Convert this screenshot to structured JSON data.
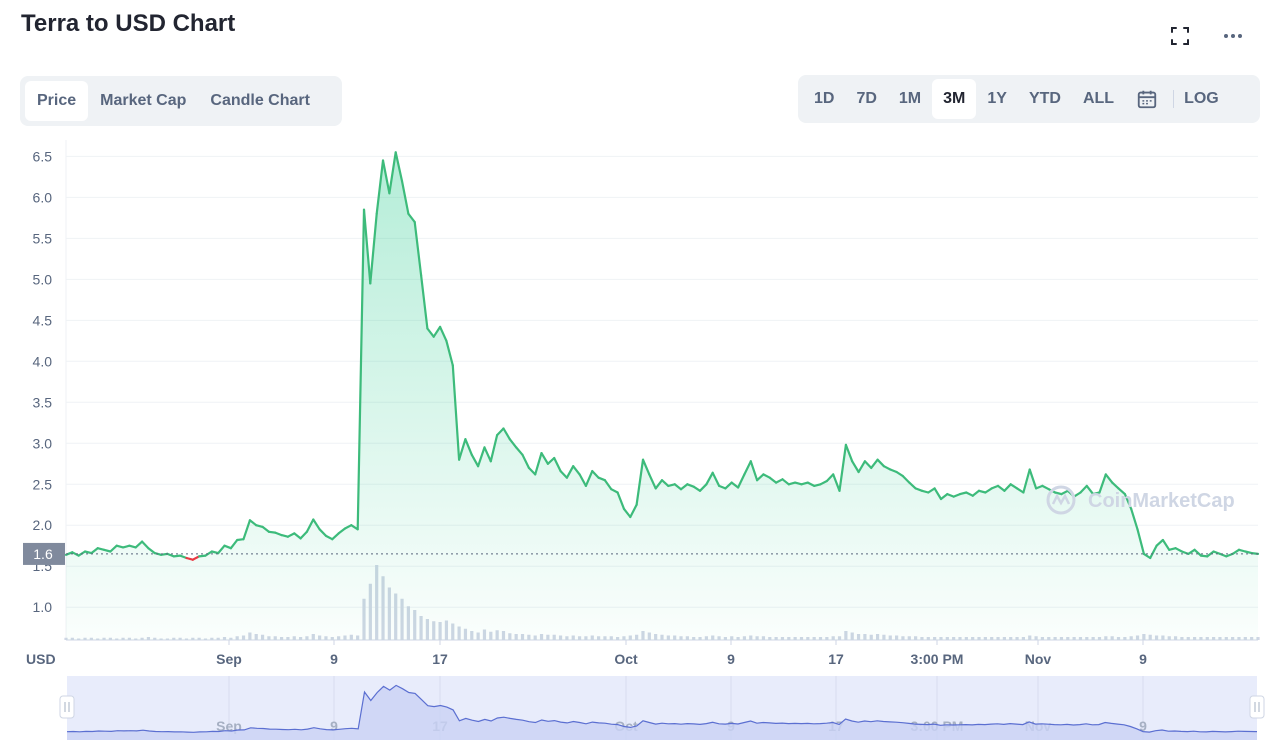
{
  "header": {
    "title": "Terra to USD Chart"
  },
  "tabs": [
    "Price",
    "Market Cap",
    "Candle Chart"
  ],
  "active_tab": "Price",
  "ranges": [
    "1D",
    "7D",
    "1M",
    "3M",
    "1Y",
    "YTD",
    "ALL"
  ],
  "active_range": "3M",
  "log_label": "LOG",
  "watermark": "CoinMarketCap",
  "colors": {
    "up": "#16c784",
    "line": "#3dbb7b",
    "down": "#ea3943",
    "grid": "#eff2f5",
    "volume": "#cfd6e4",
    "navigator_fill": "#e8ecfb",
    "navigator_line": "#5b6fd1"
  },
  "chart_data": {
    "type": "area",
    "title": "Terra to USD Chart",
    "ylabel": "USD",
    "ylim": [
      0.6,
      6.7
    ],
    "yticks": [
      "1.0",
      "1.5",
      "2.0",
      "2.5",
      "3.0",
      "3.5",
      "4.0",
      "4.5",
      "5.0",
      "5.5",
      "6.0",
      "6.5"
    ],
    "current_price_label": "1.6",
    "current_price": 1.65,
    "x_tick_labels": [
      "Sep",
      "9",
      "17",
      "Oct",
      "9",
      "17",
      "3:00 PM",
      "Nov",
      "9"
    ],
    "grid": true,
    "series": [
      {
        "values": [
          1.64,
          1.67,
          1.63,
          1.68,
          1.66,
          1.72,
          1.7,
          1.68,
          1.75,
          1.73,
          1.75,
          1.73,
          1.8,
          1.72,
          1.66,
          1.64,
          1.65,
          1.62,
          1.63,
          1.6,
          1.58,
          1.62,
          1.63,
          1.68,
          1.66,
          1.75,
          1.72,
          1.82,
          1.83,
          2.06,
          2.0,
          1.98,
          1.92,
          1.91,
          1.88,
          1.86,
          1.9,
          1.84,
          1.92,
          2.07,
          1.95,
          1.87,
          1.83,
          1.9,
          1.96,
          2.0,
          1.95,
          5.85,
          4.95,
          5.8,
          6.45,
          6.05,
          6.55,
          6.2,
          5.8,
          5.7,
          5.05,
          4.4,
          4.3,
          4.42,
          4.25,
          3.95,
          2.8,
          3.05,
          2.86,
          2.72,
          2.95,
          2.78,
          3.1,
          3.18,
          3.05,
          2.95,
          2.86,
          2.7,
          2.62,
          2.88,
          2.75,
          2.82,
          2.66,
          2.58,
          2.72,
          2.62,
          2.48,
          2.66,
          2.58,
          2.55,
          2.44,
          2.4,
          2.2,
          2.1,
          2.25,
          2.8,
          2.62,
          2.45,
          2.55,
          2.48,
          2.5,
          2.44,
          2.5,
          2.47,
          2.42,
          2.5,
          2.64,
          2.48,
          2.45,
          2.52,
          2.46,
          2.62,
          2.78,
          2.55,
          2.62,
          2.58,
          2.52,
          2.56,
          2.5,
          2.52,
          2.5,
          2.52,
          2.48,
          2.5,
          2.54,
          2.62,
          2.42,
          2.98,
          2.78,
          2.65,
          2.78,
          2.7,
          2.8,
          2.72,
          2.68,
          2.65,
          2.6,
          2.52,
          2.45,
          2.42,
          2.4,
          2.45,
          2.32,
          2.38,
          2.35,
          2.38,
          2.4,
          2.36,
          2.42,
          2.4,
          2.45,
          2.48,
          2.42,
          2.5,
          2.45,
          2.4,
          2.68,
          2.45,
          2.48,
          2.44,
          2.4,
          2.38,
          2.42,
          2.35,
          2.4,
          2.48,
          2.38,
          2.4,
          2.62,
          2.52,
          2.45,
          2.38,
          2.2,
          1.95,
          1.65,
          1.6,
          1.75,
          1.82,
          1.7,
          1.72,
          1.68,
          1.65,
          1.7,
          1.63,
          1.62,
          1.68,
          1.65,
          1.62,
          1.65,
          1.7,
          1.68,
          1.66,
          1.65
        ]
      }
    ],
    "volume": [
      0.03,
      0.03,
      0.02,
      0.03,
      0.03,
      0.02,
      0.03,
      0.03,
      0.02,
      0.03,
      0.03,
      0.02,
      0.03,
      0.04,
      0.03,
      0.02,
      0.02,
      0.03,
      0.03,
      0.02,
      0.03,
      0.03,
      0.02,
      0.03,
      0.03,
      0.04,
      0.03,
      0.05,
      0.06,
      0.1,
      0.08,
      0.07,
      0.05,
      0.05,
      0.04,
      0.04,
      0.05,
      0.04,
      0.05,
      0.08,
      0.06,
      0.05,
      0.04,
      0.05,
      0.06,
      0.07,
      0.06,
      0.55,
      0.75,
      1.0,
      0.85,
      0.7,
      0.62,
      0.55,
      0.45,
      0.4,
      0.32,
      0.28,
      0.25,
      0.24,
      0.26,
      0.22,
      0.18,
      0.15,
      0.12,
      0.1,
      0.14,
      0.11,
      0.13,
      0.12,
      0.09,
      0.08,
      0.08,
      0.07,
      0.06,
      0.08,
      0.07,
      0.07,
      0.06,
      0.05,
      0.06,
      0.05,
      0.05,
      0.06,
      0.05,
      0.05,
      0.05,
      0.04,
      0.05,
      0.06,
      0.07,
      0.12,
      0.1,
      0.08,
      0.07,
      0.06,
      0.06,
      0.05,
      0.05,
      0.04,
      0.04,
      0.05,
      0.06,
      0.05,
      0.04,
      0.05,
      0.04,
      0.05,
      0.06,
      0.05,
      0.05,
      0.04,
      0.04,
      0.04,
      0.04,
      0.04,
      0.04,
      0.04,
      0.04,
      0.04,
      0.04,
      0.05,
      0.05,
      0.12,
      0.1,
      0.08,
      0.08,
      0.07,
      0.08,
      0.07,
      0.06,
      0.06,
      0.05,
      0.05,
      0.05,
      0.04,
      0.04,
      0.04,
      0.04,
      0.04,
      0.04,
      0.04,
      0.04,
      0.04,
      0.04,
      0.04,
      0.04,
      0.04,
      0.04,
      0.04,
      0.04,
      0.04,
      0.06,
      0.05,
      0.04,
      0.04,
      0.04,
      0.04,
      0.04,
      0.04,
      0.04,
      0.04,
      0.04,
      0.04,
      0.05,
      0.05,
      0.04,
      0.04,
      0.05,
      0.06,
      0.08,
      0.07,
      0.06,
      0.06,
      0.05,
      0.05,
      0.04,
      0.04,
      0.04,
      0.04,
      0.04,
      0.04,
      0.04,
      0.04,
      0.04,
      0.04,
      0.04,
      0.04,
      0.04
    ]
  }
}
